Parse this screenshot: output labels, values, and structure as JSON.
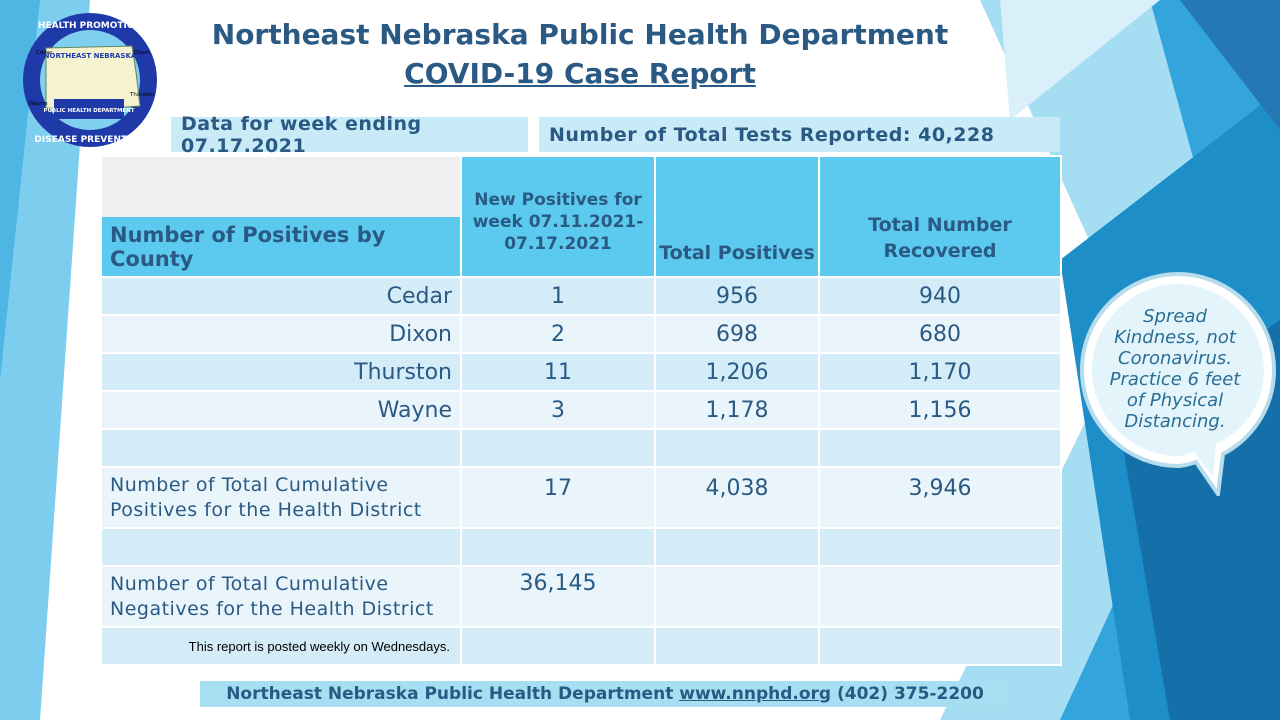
{
  "logo": {
    "top_text": "HEALTH PROMOTION",
    "bottom_text": "DISEASE PREVENTION",
    "center_title": "NORTHEAST NEBRASKA",
    "center_sub": "PUBLIC HEALTH DEPARTMENT",
    "counties": [
      "Cedar",
      "Dixon",
      "Wayne",
      "Thurston"
    ]
  },
  "header": {
    "title": "Northeast Nebraska Public Health Department",
    "subtitle": "COVID-19 Case Report"
  },
  "info": {
    "week": "Data for week ending 07.17.2021",
    "tests": "Number of Total Tests Reported: 40,228"
  },
  "table": {
    "headers": {
      "county": "Number of Positives by County",
      "new_positives": "New Positives for week 07.11.2021-07.17.2021",
      "total_positives": "Total Positives",
      "recovered": "Total Number Recovered"
    },
    "rows": [
      {
        "county": "Cedar",
        "new": "1",
        "total": "956",
        "recovered": "940"
      },
      {
        "county": "Dixon",
        "new": "2",
        "total": "698",
        "recovered": "680"
      },
      {
        "county": "Thurston",
        "new": "11",
        "total": "1,206",
        "recovered": "1,170"
      },
      {
        "county": "Wayne",
        "new": "3",
        "total": "1,178",
        "recovered": "1,156"
      }
    ],
    "cumulative_positives": {
      "label": "Number of Total Cumulative Positives for the Health District",
      "new": "17",
      "total": "4,038",
      "recovered": "3,946"
    },
    "cumulative_negatives": {
      "label": "Number of Total Cumulative Negatives for the Health District",
      "value": "36,145"
    },
    "note": "This report is posted weekly on Wednesdays."
  },
  "bubble": {
    "text": "Spread Kindness, not Coronavirus. Practice 6 feet of Physical Distancing."
  },
  "footer": {
    "org": "Northeast Nebraska Public Health Department",
    "url": "www.nnphd.org",
    "phone": "(402) 375-2200"
  },
  "colors": {
    "title": "#2a5a84",
    "header_fill": "#5ccaee",
    "row_dark": "#d3ecf8",
    "row_light": "#e9f5fb"
  }
}
